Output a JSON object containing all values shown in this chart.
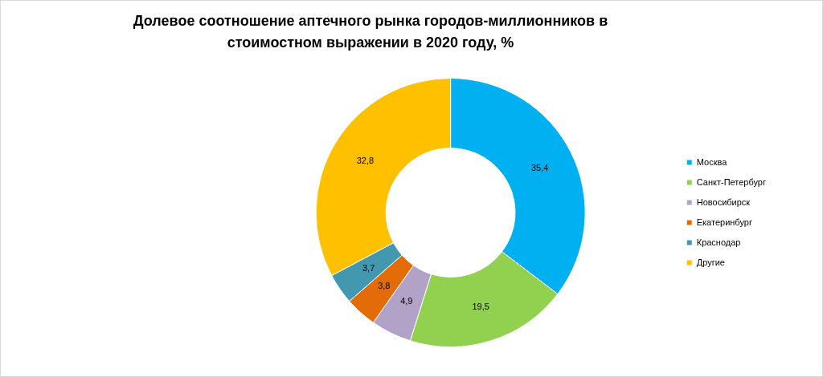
{
  "chart_data": {
    "type": "donut",
    "title": "Долевое соотношение аптечного рынка городов-миллионников в стоимостном выражении  в 2020 году, %",
    "categories": [
      "Москва",
      "Санкт-Петербург",
      "Новосибирск",
      "Екатеринбург",
      "Краснодар",
      "Другие"
    ],
    "values": [
      35.4,
      19.5,
      4.9,
      3.8,
      3.7,
      32.8
    ],
    "value_labels": [
      "35,4",
      "19,5",
      "4,9",
      "3,8",
      "3,7",
      "32,8"
    ],
    "colors": [
      "#00b0f0",
      "#92d050",
      "#b3a2c7",
      "#e36c09",
      "#4198af",
      "#ffc000"
    ],
    "legend": "right"
  }
}
